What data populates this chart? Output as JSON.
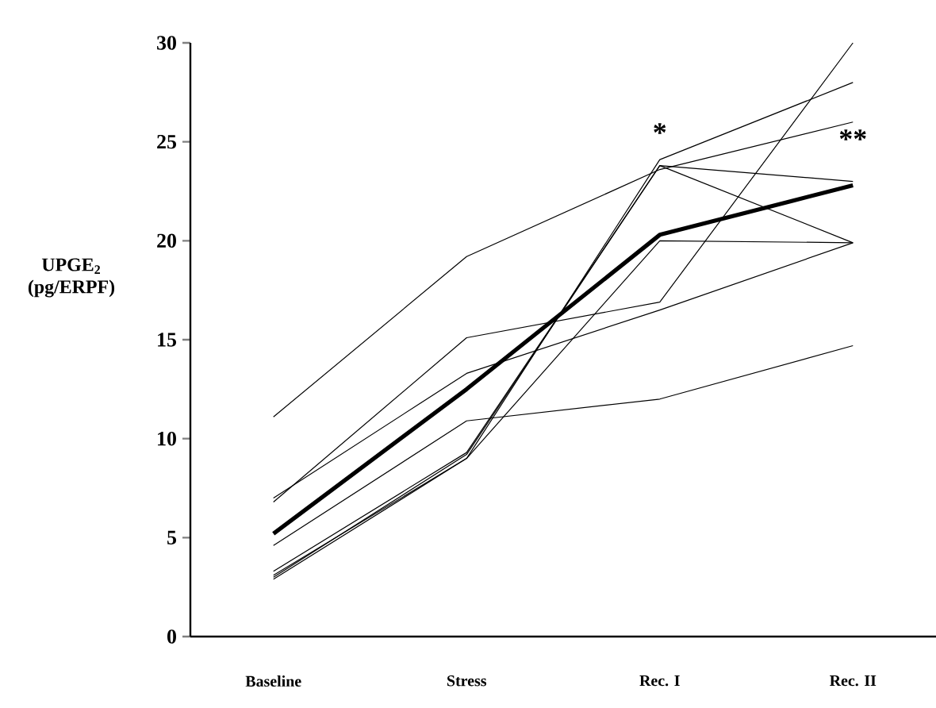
{
  "chart_data": {
    "type": "line",
    "ylabel": "UPGE$_{2}$ (pg/ERPF)",
    "categories": [
      "Baseline",
      "Stress",
      "Rec. I",
      "Rec. II"
    ],
    "ylim": [
      0,
      30
    ],
    "yticks": [
      0,
      5,
      10,
      15,
      20,
      25,
      30
    ],
    "series": [
      {
        "color": "#000000",
        "values": [
          11.1,
          19.2,
          23.6,
          26.0
        ]
      },
      {
        "color": "#000000",
        "values": [
          6.8,
          15.1,
          16.9,
          30.0
        ]
      },
      {
        "color": "#000000",
        "values": [
          7.0,
          13.3,
          16.5,
          19.9
        ]
      },
      {
        "color": "#000000",
        "values": [
          4.6,
          10.9,
          12.0,
          14.7
        ]
      },
      {
        "color": "#000000",
        "values": [
          2.9,
          9.0,
          24.1,
          28.0
        ]
      },
      {
        "color": "#000000",
        "values": [
          3.3,
          9.3,
          23.8,
          23.0
        ]
      },
      {
        "color": "#000000",
        "values": [
          3.0,
          9.2,
          23.8,
          19.9
        ]
      },
      {
        "color": "#000000",
        "values": [
          3.1,
          9.0,
          20.0,
          19.9
        ]
      },
      {
        "color": "#000000",
        "values": [
          5.2,
          12.5,
          20.3,
          22.8
        ]
      }
    ],
    "annotations": [
      "*",
      "**"
    ]
  }
}
